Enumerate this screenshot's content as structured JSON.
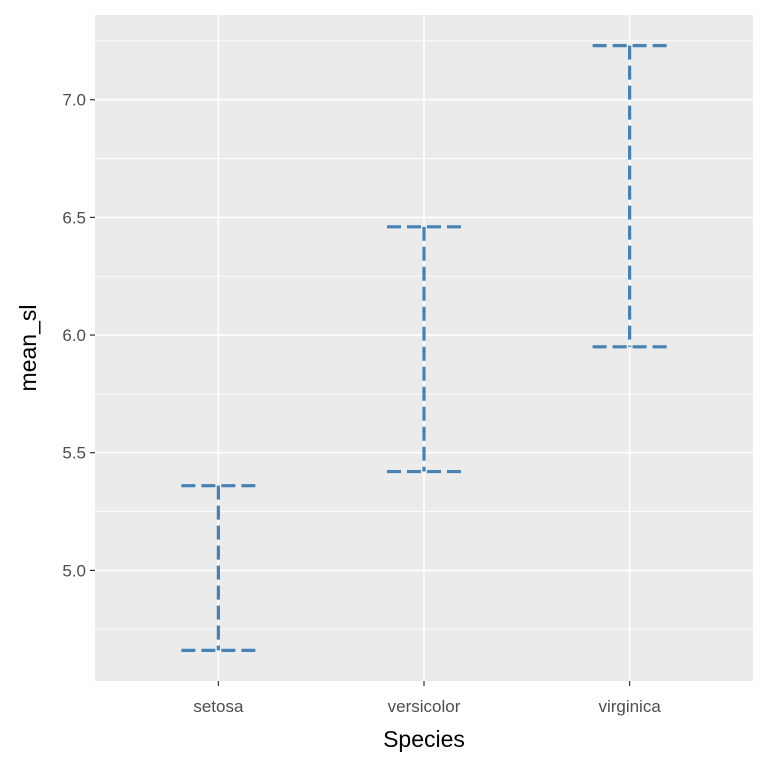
{
  "chart_data": {
    "type": "errorbar",
    "categories": [
      "setosa",
      "versicolor",
      "virginica"
    ],
    "series": [
      {
        "lower": [
          4.66,
          5.42,
          5.95
        ],
        "upper": [
          5.36,
          6.46,
          7.23
        ]
      }
    ],
    "xlabel": "Species",
    "ylabel": "mean_sl",
    "ylim": [
      4.53,
      7.36
    ],
    "yticks": [
      "5.0",
      "5.5",
      "6.0",
      "6.5",
      "7.0"
    ],
    "ytick_values": [
      5.0,
      5.5,
      6.0,
      6.5,
      7.0
    ],
    "grid": true,
    "panel_background": "#ebebeb",
    "color": "#4682b4",
    "line_style": "dashed"
  }
}
